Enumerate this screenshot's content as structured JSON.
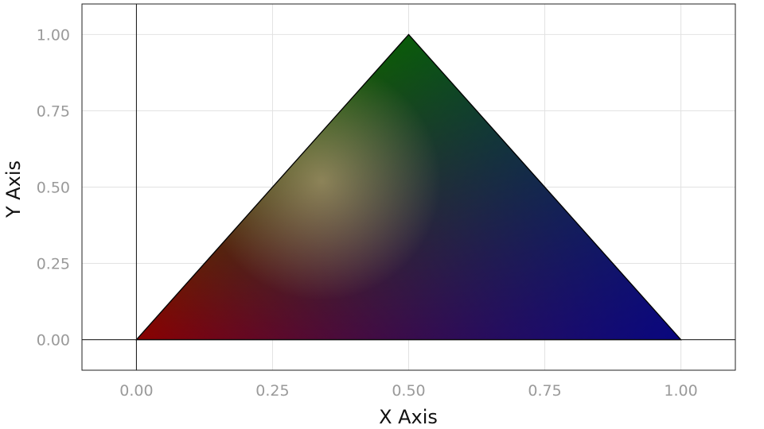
{
  "chart_data": {
    "type": "area",
    "title": "",
    "xlabel": "X Axis",
    "ylabel": "Y Axis",
    "xlim": [
      -0.1,
      1.1
    ],
    "ylim": [
      -0.1,
      1.1
    ],
    "x_ticks": [
      0.0,
      0.25,
      0.5,
      0.75,
      1.0
    ],
    "x_tick_labels": [
      "0.00",
      "0.25",
      "0.50",
      "0.75",
      "1.00"
    ],
    "y_ticks": [
      0.0,
      0.25,
      0.5,
      0.75,
      1.0
    ],
    "y_tick_labels": [
      "0.00",
      "0.25",
      "0.50",
      "0.75",
      "1.00"
    ],
    "grid": true,
    "reference_lines": {
      "x": 0,
      "y": 0
    },
    "triangle": {
      "vertices": [
        {
          "x": 0.0,
          "y": 0.0,
          "color": "#8b0000"
        },
        {
          "x": 0.5,
          "y": 1.0,
          "color": "#006400"
        },
        {
          "x": 1.0,
          "y": 0.0,
          "color": "#00008b"
        }
      ],
      "highlight_color": "#d9c28a",
      "edge_color": "#000000"
    }
  }
}
